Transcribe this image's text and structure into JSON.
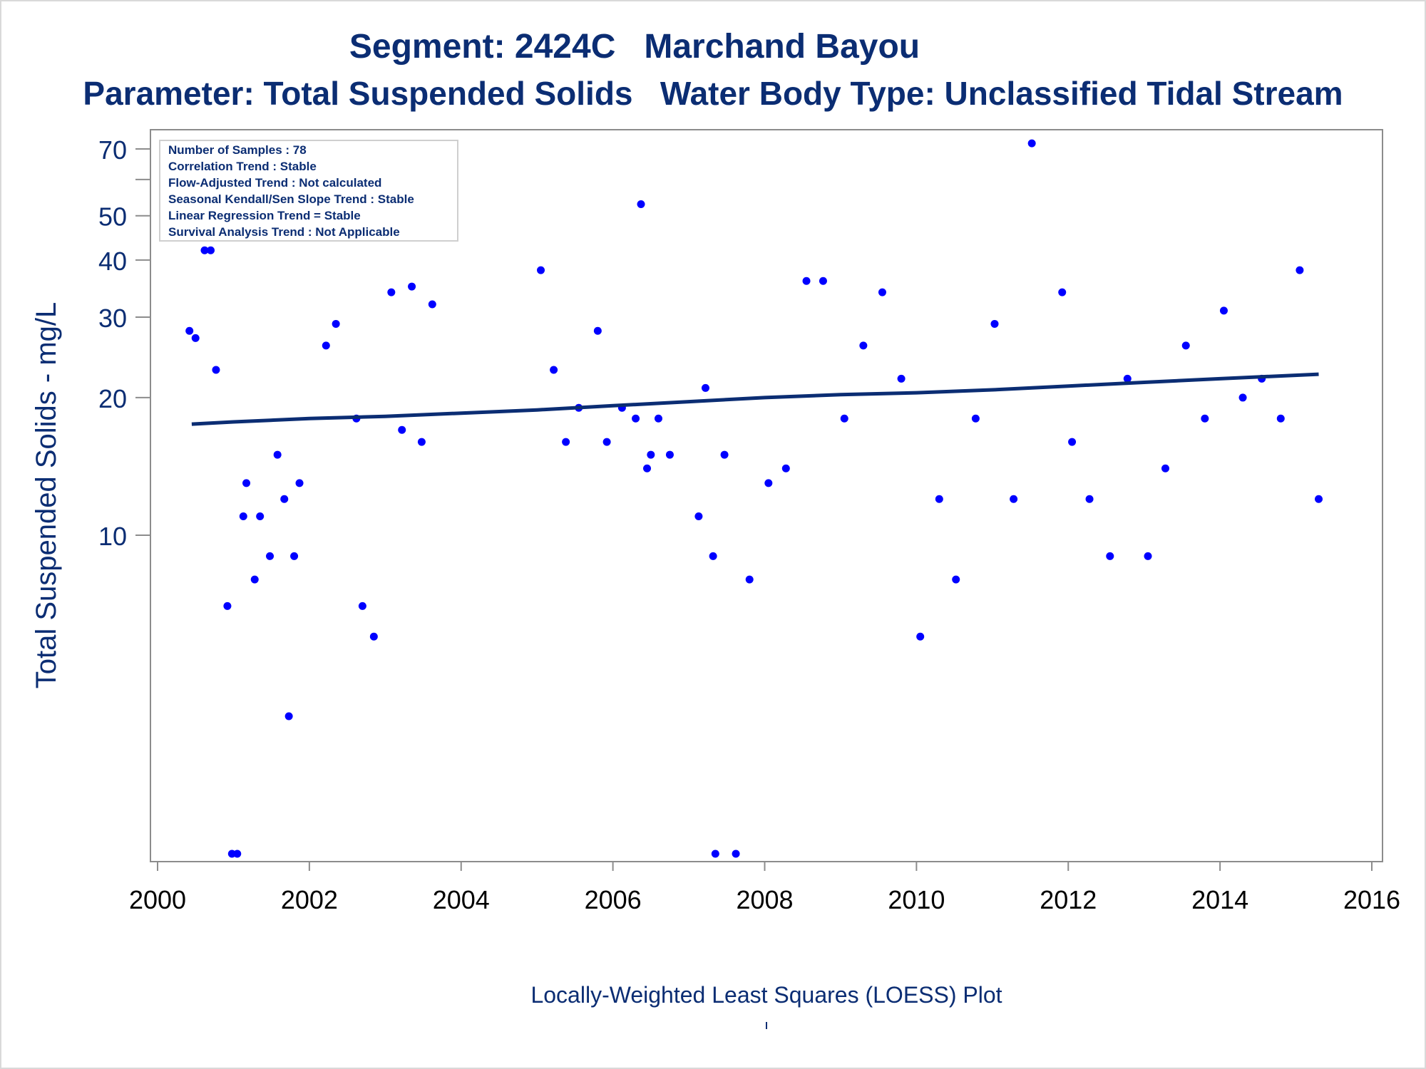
{
  "chart_data": {
    "type": "scatter",
    "title": "Segment: 2424C   Marchand Bayou",
    "subtitle": "Parameter: Total Suspended Solids   Water Body Type: Unclassified Tidal Stream",
    "xlabel": "",
    "ylabel": "Total Suspended Solids - mg/L",
    "caption": "Locally-Weighted Least Squares (LOESS) Plot",
    "yscale": "log",
    "xlim": [
      2000,
      2016
    ],
    "ylim": [
      1,
      75
    ],
    "xticks": [
      2000,
      2002,
      2004,
      2006,
      2008,
      2010,
      2012,
      2014,
      2016
    ],
    "yticks": [
      10,
      20,
      30,
      40,
      50,
      70
    ],
    "ytick_labels": [
      "10",
      "20",
      "30",
      "40",
      "50",
      "70"
    ],
    "grid": false,
    "legend_box": [
      "Number of Samples : 78",
      "Correlation Trend : Stable",
      "Flow-Adjusted Trend : Not calculated",
      "Seasonal Kendall/Sen Slope Trend : Stable",
      "Linear Regression Trend = Stable",
      "Survival Analysis Trend : Not Applicable"
    ],
    "legend_placement": "top-left",
    "colors": {
      "points": "#0000ff",
      "line": "#0b2d73",
      "text": "#0b2d73"
    },
    "series": [
      {
        "type": "scatter",
        "points": [
          [
            2000.42,
            28
          ],
          [
            2000.5,
            27
          ],
          [
            2000.62,
            42
          ],
          [
            2000.7,
            42
          ],
          [
            2000.77,
            23
          ],
          [
            2000.92,
            7
          ],
          [
            2000.98,
            2
          ],
          [
            2001.05,
            2
          ],
          [
            2001.13,
            11
          ],
          [
            2001.17,
            13
          ],
          [
            2001.28,
            8
          ],
          [
            2001.35,
            11
          ],
          [
            2001.48,
            9
          ],
          [
            2001.58,
            15
          ],
          [
            2001.67,
            12
          ],
          [
            2001.73,
            4
          ],
          [
            2001.8,
            9
          ],
          [
            2001.87,
            13
          ],
          [
            2002.22,
            26
          ],
          [
            2002.35,
            29
          ],
          [
            2002.62,
            18
          ],
          [
            2002.7,
            7
          ],
          [
            2002.85,
            6
          ],
          [
            2003.08,
            34
          ],
          [
            2003.22,
            17
          ],
          [
            2003.35,
            35
          ],
          [
            2003.48,
            16
          ],
          [
            2003.62,
            32
          ],
          [
            2005.05,
            38
          ],
          [
            2005.22,
            23
          ],
          [
            2005.38,
            16
          ],
          [
            2005.55,
            19
          ],
          [
            2005.8,
            28
          ],
          [
            2005.92,
            16
          ],
          [
            2006.12,
            19
          ],
          [
            2006.3,
            18
          ],
          [
            2006.37,
            53
          ],
          [
            2006.45,
            14
          ],
          [
            2006.5,
            15
          ],
          [
            2006.6,
            18
          ],
          [
            2006.75,
            15
          ],
          [
            2007.13,
            11
          ],
          [
            2007.22,
            21
          ],
          [
            2007.32,
            9
          ],
          [
            2007.35,
            2
          ],
          [
            2007.47,
            15
          ],
          [
            2007.62,
            2
          ],
          [
            2007.8,
            8
          ],
          [
            2008.05,
            13
          ],
          [
            2008.28,
            14
          ],
          [
            2008.55,
            36
          ],
          [
            2008.77,
            36
          ],
          [
            2009.05,
            18
          ],
          [
            2009.3,
            26
          ],
          [
            2009.55,
            34
          ],
          [
            2009.8,
            22
          ],
          [
            2010.05,
            6
          ],
          [
            2010.3,
            12
          ],
          [
            2010.52,
            8
          ],
          [
            2010.78,
            18
          ],
          [
            2011.03,
            29
          ],
          [
            2011.28,
            12
          ],
          [
            2011.52,
            72
          ],
          [
            2011.92,
            34
          ],
          [
            2012.05,
            16
          ],
          [
            2012.28,
            12
          ],
          [
            2012.55,
            9
          ],
          [
            2012.78,
            22
          ],
          [
            2013.05,
            9
          ],
          [
            2013.28,
            14
          ],
          [
            2013.55,
            26
          ],
          [
            2013.8,
            18
          ],
          [
            2014.05,
            31
          ],
          [
            2014.3,
            20
          ],
          [
            2014.55,
            22
          ],
          [
            2014.8,
            18
          ],
          [
            2015.05,
            38
          ],
          [
            2015.3,
            12
          ]
        ]
      },
      {
        "type": "line",
        "points": [
          [
            2000.45,
            17.5
          ],
          [
            2001,
            17.7
          ],
          [
            2002,
            18.0
          ],
          [
            2003,
            18.2
          ],
          [
            2004,
            18.5
          ],
          [
            2005,
            18.8
          ],
          [
            2006,
            19.2
          ],
          [
            2007,
            19.6
          ],
          [
            2008,
            20.0
          ],
          [
            2009,
            20.3
          ],
          [
            2010,
            20.5
          ],
          [
            2011,
            20.8
          ],
          [
            2012,
            21.2
          ],
          [
            2013,
            21.6
          ],
          [
            2014,
            22.0
          ],
          [
            2015.3,
            22.5
          ]
        ]
      }
    ]
  }
}
